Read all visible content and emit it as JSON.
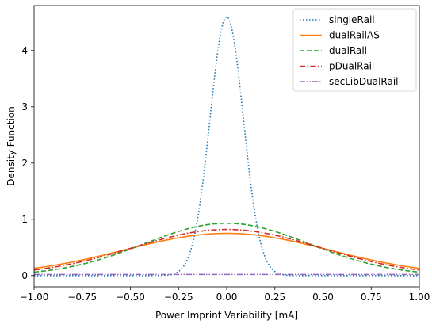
{
  "chart_data": {
    "type": "line",
    "title": "",
    "xlabel": "Power Imprint Variability [mA]",
    "ylabel": "Density Function",
    "xlim": [
      -1.0,
      1.0
    ],
    "ylim": [
      -0.2,
      4.8
    ],
    "xticks": [
      -1.0,
      -0.75,
      -0.5,
      -0.25,
      0.0,
      0.25,
      0.5,
      0.75,
      1.0
    ],
    "xtick_labels": [
      "−1.00",
      "−0.75",
      "−0.50",
      "−0.25",
      "0.00",
      "0.25",
      "0.50",
      "0.75",
      "1.00"
    ],
    "yticks": [
      0,
      1,
      2,
      3,
      4
    ],
    "ytick_labels": [
      "0",
      "1",
      "2",
      "3",
      "4"
    ],
    "grid": false,
    "legend_position": "top-right",
    "series": [
      {
        "name": "singleRail",
        "color": "#1f77b4",
        "style": "dotted",
        "distribution": "normal",
        "mean": 0.0,
        "std": 0.0867,
        "peak": 4.6
      },
      {
        "name": "dualRailAS",
        "color": "#ff7f0e",
        "style": "solid",
        "distribution": "normal",
        "mean": 0.0,
        "std": 0.532,
        "peak": 0.75
      },
      {
        "name": "dualRail",
        "color": "#2ca02c",
        "style": "dashed",
        "distribution": "normal",
        "mean": 0.0,
        "std": 0.429,
        "peak": 0.93
      },
      {
        "name": "pDualRail",
        "color": "#d62728",
        "style": "dashdot",
        "distribution": "normal",
        "mean": 0.0,
        "std": 0.486,
        "peak": 0.82
      },
      {
        "name": "secLibDualRail",
        "color": "#9467bd",
        "style": "dashdotdot",
        "distribution": "flat",
        "mean": 0.0,
        "std": null,
        "peak": 0.02
      }
    ]
  }
}
